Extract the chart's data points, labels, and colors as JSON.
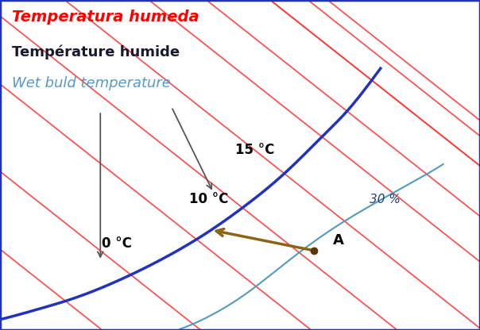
{
  "title_line1": "Temperatura humeda",
  "title_line2": "Température humide",
  "title_line3": "Wet buld temperature",
  "title_color1": "#FF0000",
  "title_color2": "#1a1a2e",
  "title_color3": "#5599CC",
  "bg_color": "#FFFFFF",
  "blue_curve_color": "#2233BB",
  "red_lines_color": "#FF3333",
  "rh_curve_color": "#5599BB",
  "arrow_color": "#8B6514",
  "point_color": "#5a3500",
  "label_0C": "0 °C",
  "label_10C": "10 °C",
  "label_15C": "15 °C",
  "label_30pct": "30 %",
  "label_A": "A",
  "border_color": "#2233BB"
}
